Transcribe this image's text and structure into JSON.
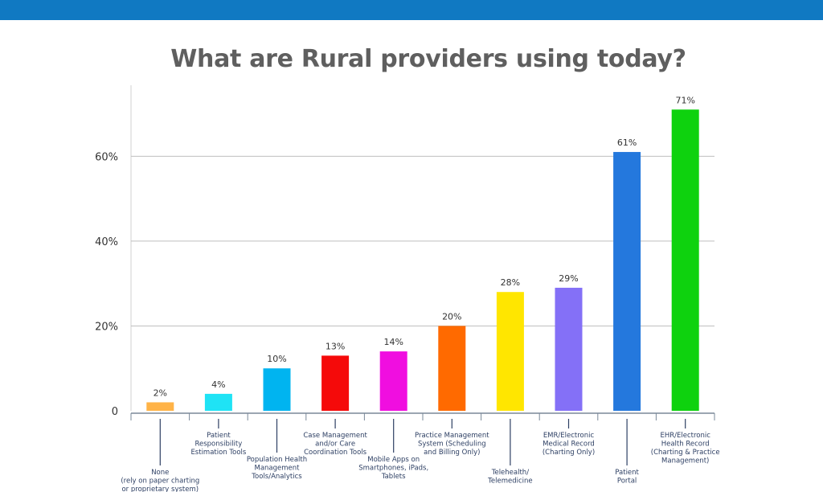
{
  "colors": {
    "top_bar": "#1079c2",
    "title": "#5f5f5f",
    "axis_text": "#333333",
    "category_text": "#2d3f63",
    "grid": "#bfbfbf",
    "axis_line": "#7a8899"
  },
  "chart_data": {
    "type": "bar",
    "title": "What are Rural providers using today?",
    "xlabel": "",
    "ylabel": "",
    "ylim": [
      0,
      72
    ],
    "y_ticks": [
      {
        "value": 0,
        "label": "0"
      },
      {
        "value": 20,
        "label": "20%"
      },
      {
        "value": 40,
        "label": "40%"
      },
      {
        "value": 60,
        "label": "60%"
      }
    ],
    "grid": true,
    "legend": "none",
    "categories": [
      [
        "None",
        "(rely on paper charting",
        "or proprietary system)"
      ],
      [
        "Patient",
        "Responsibility",
        "Estimation Tools"
      ],
      [
        "Population Health",
        "Management",
        "Tools/Analytics"
      ],
      [
        "Case Management",
        "and/or Care",
        "Coordination Tools"
      ],
      [
        "Mobile Apps on",
        "Smartphones, iPads,",
        "Tablets"
      ],
      [
        "Practice Management",
        "System (Scheduling",
        "and Billing Only)"
      ],
      [
        "Telehealth/",
        "Telemedicine"
      ],
      [
        "EMR/Electronic",
        "Medical Record",
        "(Charting Only)"
      ],
      [
        "Patient",
        "Portal"
      ],
      [
        "EHR/Electronic",
        "Health Record",
        "(Charting & Practice",
        "Management)"
      ]
    ],
    "values": [
      2,
      4,
      10,
      13,
      14,
      20,
      28,
      29,
      61,
      71
    ],
    "value_labels": [
      "2%",
      "4%",
      "10%",
      "13%",
      "14%",
      "20%",
      "28%",
      "29%",
      "61%",
      "71%"
    ],
    "bar_colors": [
      "#ffb347",
      "#1fe3f5",
      "#00b4f0",
      "#f50a0a",
      "#f00ee0",
      "#ff6a00",
      "#ffe600",
      "#8470f7",
      "#2478dd",
      "#0ed20e"
    ]
  }
}
